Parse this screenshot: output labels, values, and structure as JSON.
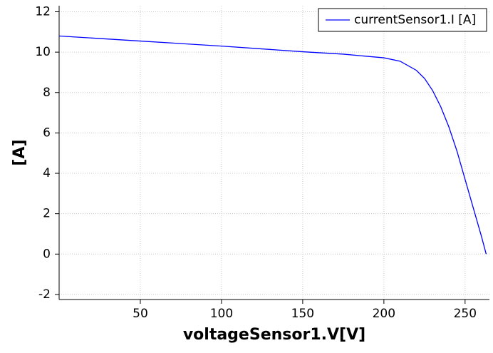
{
  "chart_data": {
    "type": "line",
    "xlabel": "voltageSensor1.V[V]",
    "ylabel": "[A]",
    "x": [
      0,
      50,
      100,
      150,
      175,
      200,
      210,
      220,
      225,
      230,
      235,
      240,
      245,
      250,
      255,
      260,
      263
    ],
    "series": [
      {
        "name": "currentSensor1.I [A]",
        "color": "#0000ff",
        "values": [
          10.8,
          10.55,
          10.3,
          10.02,
          9.9,
          9.72,
          9.55,
          9.1,
          8.7,
          8.1,
          7.3,
          6.3,
          5.1,
          3.7,
          2.3,
          0.9,
          0
        ]
      }
    ],
    "xlim": [
      0,
      265
    ],
    "ylim": [
      -2.25,
      12.3
    ],
    "xticks": [
      50,
      100,
      150,
      200,
      250
    ],
    "yticks": [
      -2,
      0,
      2,
      4,
      6,
      8,
      10,
      12
    ],
    "grid": true,
    "legend": "upper right"
  }
}
